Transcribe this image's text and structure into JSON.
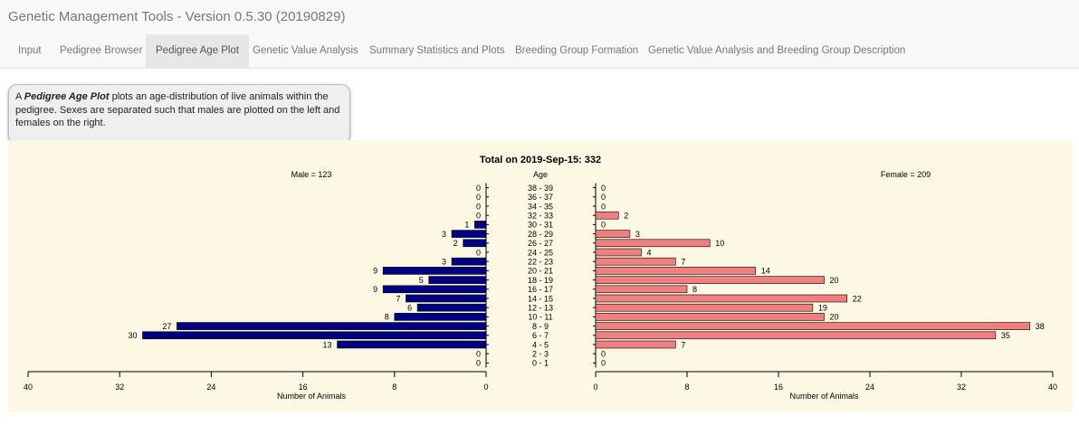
{
  "app": {
    "title": "Genetic Management Tools - Version 0.5.30 (20190829)"
  },
  "tabs": [
    {
      "label": "Input",
      "active": false
    },
    {
      "label": "Pedigree Browser",
      "active": false
    },
    {
      "label": "Pedigree Age Plot",
      "active": true
    },
    {
      "label": "Genetic Value Analysis",
      "active": false
    },
    {
      "label": "Summary Statistics and Plots",
      "active": false
    },
    {
      "label": "Breeding Group Formation",
      "active": false
    },
    {
      "label": "Genetic Value Analysis and Breeding Group Description",
      "active": false
    }
  ],
  "info": {
    "prefix": "A ",
    "term": "Pedigree Age Plot",
    "text": " plots an age-distribution of live animals within the pedigree. Sexes are separated such that males are plotted on the left and females on the right."
  },
  "chart_data": {
    "type": "bar",
    "title": "Total on 2019-Sep-15: 332",
    "center_label": "Age",
    "male_label": "Male = 123",
    "female_label": "Female = 209",
    "xlabel": "Number of Animals",
    "xlim": [
      0,
      40
    ],
    "ticks": [
      0,
      8,
      16,
      24,
      32,
      40
    ],
    "colors": {
      "male": "#000080",
      "female": "#f08080"
    },
    "categories": [
      "38 - 39",
      "36 - 37",
      "34 - 35",
      "32 - 33",
      "30 - 31",
      "28 - 29",
      "26 - 27",
      "24 - 25",
      "22 - 23",
      "20 - 21",
      "18 - 19",
      "16 - 17",
      "14 - 15",
      "12 - 13",
      "10 - 11",
      "8 - 9",
      "6 - 7",
      "4 - 5",
      "2 - 3",
      "0 - 1"
    ],
    "series": [
      {
        "name": "Male = 123",
        "values": [
          0,
          0,
          0,
          0,
          1,
          3,
          2,
          0,
          3,
          9,
          5,
          9,
          7,
          6,
          8,
          27,
          30,
          13,
          0,
          0
        ]
      },
      {
        "name": "Female = 209",
        "values": [
          0,
          0,
          0,
          2,
          0,
          3,
          10,
          4,
          7,
          14,
          20,
          8,
          22,
          19,
          20,
          38,
          35,
          7,
          0,
          0
        ]
      }
    ]
  }
}
